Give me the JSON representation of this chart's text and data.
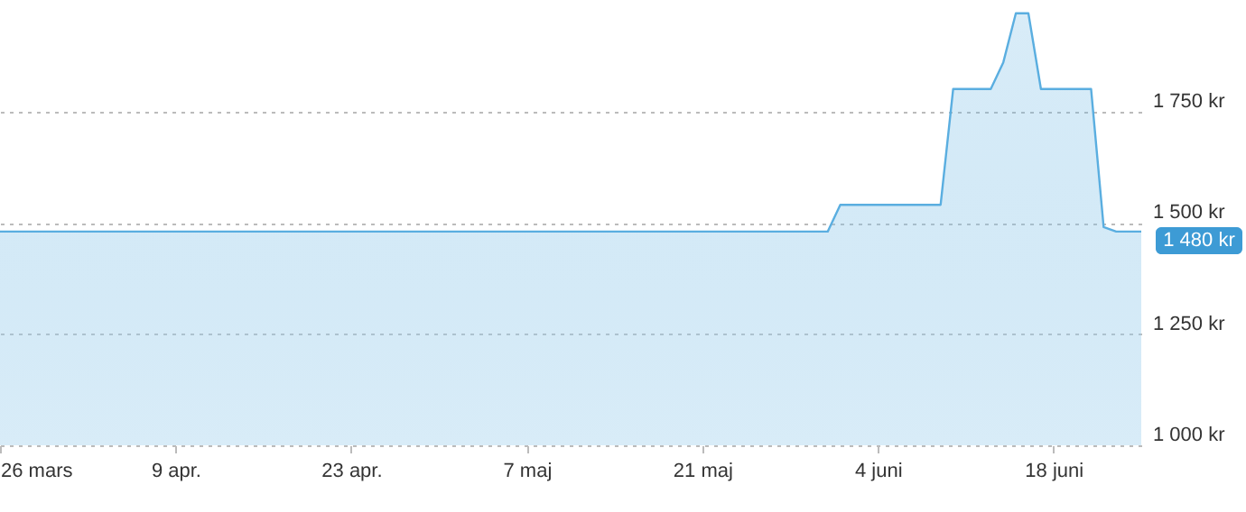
{
  "chart_data": {
    "type": "area",
    "x": [
      "--03-26",
      "--05-31",
      "--06-01",
      "--06-09",
      "--06-10",
      "--06-13",
      "--06-14",
      "--06-15",
      "--06-16",
      "--06-17",
      "--06-21",
      "--06-22",
      "--06-23",
      "--06-25"
    ],
    "series": [
      {
        "color": "#5aaee0",
        "values": [
          1480,
          1480,
          1540,
          1540,
          1800,
          1800,
          1860,
          1970,
          1970,
          1800,
          1800,
          1490,
          1480,
          1480
        ]
      }
    ],
    "xlim": [
      "--03-26",
      "--06-25"
    ],
    "xticks": [
      {
        "value": "--03-26",
        "label": "26 mars"
      },
      {
        "value": "--04-09",
        "label": "9 apr."
      },
      {
        "value": "--04-23",
        "label": "23 apr."
      },
      {
        "value": "--05-07",
        "label": "7 maj"
      },
      {
        "value": "--05-21",
        "label": "21 maj"
      },
      {
        "value": "--06-04",
        "label": "4 juni"
      },
      {
        "value": "--06-18",
        "label": "18 juni"
      }
    ],
    "ylim": [
      1000,
      2000
    ],
    "yticks": [
      {
        "value": 1000,
        "label": "1 000 kr"
      },
      {
        "value": 1250,
        "label": "1 250 kr"
      },
      {
        "value": 1500,
        "label": "1 500 kr"
      },
      {
        "value": 1750,
        "label": "1 750 kr"
      }
    ],
    "grid": "y",
    "annotations": [
      {
        "text": "1 480 kr",
        "x": "--06-25",
        "y": 1480
      }
    ]
  }
}
